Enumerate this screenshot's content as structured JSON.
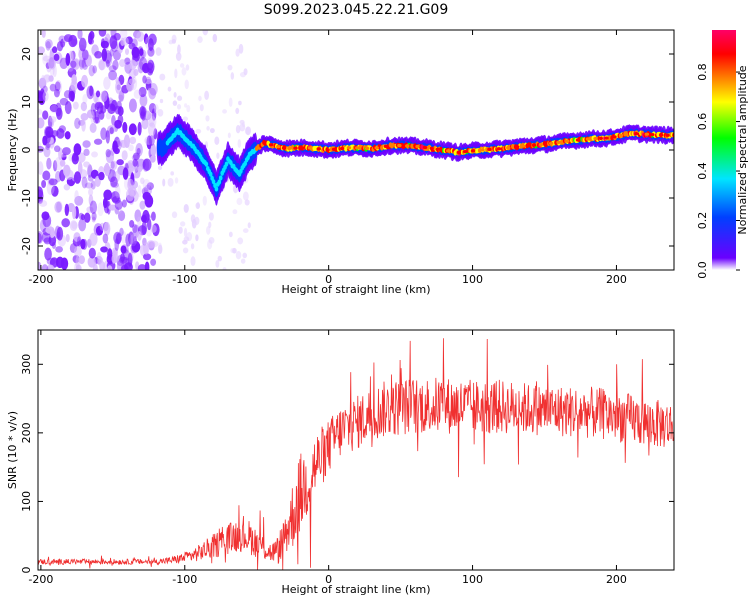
{
  "title": "S099.2023.045.22.21.G09",
  "chart_data": [
    {
      "type": "heatmap",
      "xlabel": "Height of straight line (km)",
      "ylabel": "Frequency (Hz)",
      "xlim": [
        -202,
        240
      ],
      "ylim": [
        -25,
        25
      ],
      "x_ticks": [
        -200,
        -100,
        0,
        100,
        200
      ],
      "y_ticks": [
        -20,
        -10,
        0,
        10,
        20
      ],
      "colorbar": {
        "label": "Normalized spectral amplitude",
        "range": [
          0,
          0.97
        ],
        "ticks": [
          0.0,
          0.2,
          0.4,
          0.6,
          0.8
        ],
        "colormap": [
          "#ffffff",
          "#6a00ff",
          "#0040ff",
          "#00e5ff",
          "#00ff00",
          "#ffff00",
          "#ff8000",
          "#ff0000",
          "#ff0066"
        ]
      },
      "ridge": {
        "x": [
          -115,
          -105,
          -95,
          -85,
          -78,
          -70,
          -62,
          -55,
          -45,
          -30,
          -15,
          0,
          15,
          30,
          45,
          60,
          75,
          90,
          105,
          120,
          135,
          150,
          165,
          180,
          195,
          210,
          225,
          240
        ],
        "y": [
          0.5,
          4,
          1,
          -3,
          -8,
          -2,
          -5,
          -1,
          1.5,
          0.3,
          0.5,
          0,
          0.5,
          0.3,
          1,
          0.8,
          0.2,
          -0.5,
          0,
          0.3,
          0.8,
          1.2,
          1.8,
          2.3,
          2.5,
          3.5,
          3.2,
          3
        ]
      }
    },
    {
      "type": "line",
      "xlabel": "Height of straight line (km)",
      "ylabel": "SNR (10 * v/v)",
      "xlim": [
        -202,
        240
      ],
      "ylim": [
        0,
        350
      ],
      "x_ticks": [
        -200,
        -100,
        0,
        100,
        200
      ],
      "y_ticks": [
        0,
        100,
        200,
        300
      ],
      "color": "#f03030",
      "series": [
        {
          "envelope_x": [
            -202,
            -120,
            -110,
            -100,
            -90,
            -80,
            -70,
            -60,
            -50,
            -40,
            -35,
            -30,
            -25,
            -20,
            -15,
            -10,
            -5,
            0,
            5,
            10,
            20,
            30,
            40,
            60,
            80,
            100,
            120,
            140,
            160,
            180,
            200,
            220,
            240
          ],
          "envelope_y": [
            12,
            12,
            14,
            18,
            25,
            35,
            45,
            55,
            40,
            25,
            30,
            55,
            80,
            110,
            130,
            150,
            165,
            180,
            195,
            205,
            215,
            228,
            235,
            240,
            240,
            238,
            238,
            235,
            232,
            230,
            225,
            215,
            210
          ],
          "noise": [
            4,
            4,
            5,
            8,
            12,
            18,
            22,
            28,
            22,
            15,
            20,
            35,
            50,
            60,
            55,
            50,
            45,
            40,
            38,
            40,
            40,
            40,
            42,
            42,
            42,
            40,
            40,
            38,
            38,
            38,
            38,
            36,
            35
          ]
        }
      ]
    }
  ]
}
